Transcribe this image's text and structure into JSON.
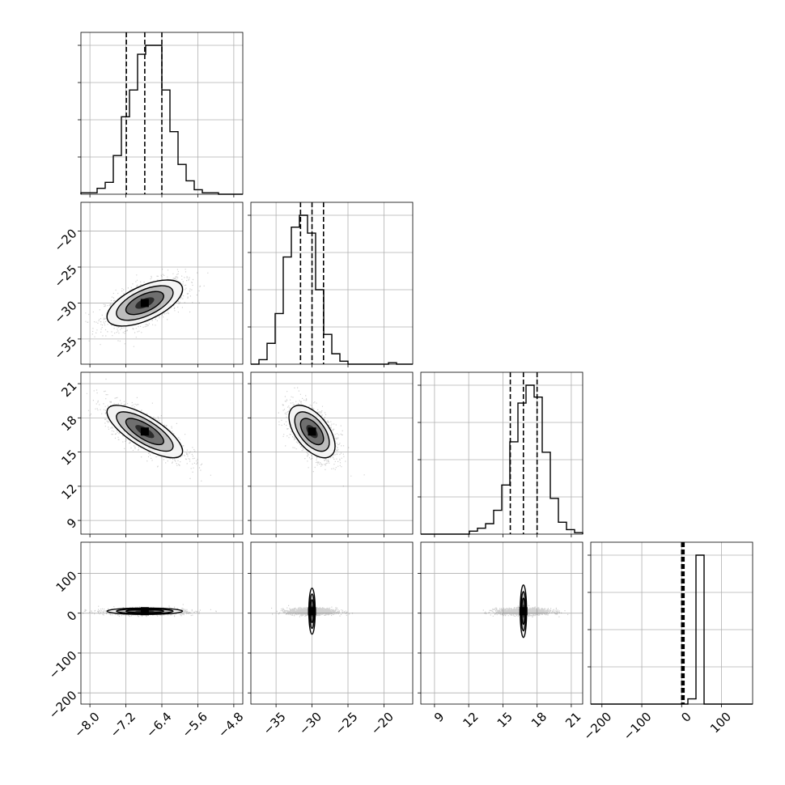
{
  "chart_data": {
    "type": "corner",
    "grid": true,
    "colors": {
      "line": "#000000",
      "grid": "#b0b0b0",
      "points": "#000000"
    },
    "params": [
      {
        "range": [
          -8.2,
          -4.6
        ],
        "ticks": [
          -8.0,
          -7.2,
          -6.4,
          -5.6,
          -4.8
        ],
        "tick_labels": [
          "−8.0",
          "−7.2",
          "−6.4",
          "−5.6",
          "−4.8"
        ],
        "mean": -6.78,
        "sd": 0.42,
        "quantiles": [
          -7.19,
          -6.78,
          -6.4
        ]
      },
      {
        "range": [
          -38.5,
          -16.0
        ],
        "ticks": [
          -35,
          -30,
          -25,
          -20
        ],
        "tick_labels": [
          "−35",
          "−30",
          "−25",
          "−20"
        ],
        "mean": -30.0,
        "sd": 1.6,
        "quantiles": [
          -31.6,
          -30.0,
          -28.4
        ]
      },
      {
        "range": [
          7.8,
          22.0
        ],
        "ticks": [
          9,
          12,
          15,
          18,
          21
        ],
        "tick_labels": [
          "9",
          "12",
          "15",
          "18",
          "21"
        ],
        "mean": 16.8,
        "sd": 1.15,
        "quantiles": [
          15.65,
          16.8,
          18.0
        ]
      },
      {
        "range": [
          -228,
          178
        ],
        "ticks": [
          -200,
          -100,
          0,
          100
        ],
        "tick_labels": [
          "−200",
          "−100",
          "0",
          "100"
        ],
        "mean": 5,
        "sd": 5,
        "quantiles": [
          0,
          3,
          6
        ]
      }
    ],
    "histograms": [
      {
        "param": 0,
        "bins": [
          -8.2,
          -4.6
        ],
        "counts": [
          0.01,
          0.01,
          0.04,
          0.08,
          0.26,
          0.52,
          0.7,
          0.94,
          1.0,
          1.0,
          0.7,
          0.42,
          0.2,
          0.09,
          0.03,
          0.01,
          0.01,
          0.0,
          0.0,
          0.0
        ]
      },
      {
        "param": 1,
        "bins": [
          -38.5,
          -16.0
        ],
        "counts": [
          0.0,
          0.03,
          0.14,
          0.34,
          0.72,
          0.92,
          1.0,
          0.88,
          0.5,
          0.2,
          0.07,
          0.02,
          0.0,
          0.0,
          0.0,
          0.0,
          0.0,
          0.01,
          0.0,
          0.0
        ]
      },
      {
        "param": 2,
        "bins": [
          7.8,
          22.0
        ],
        "counts": [
          0,
          0,
          0,
          0,
          0,
          0,
          0.02,
          0.04,
          0.07,
          0.16,
          0.33,
          0.62,
          0.88,
          1.0,
          0.92,
          0.55,
          0.24,
          0.08,
          0.03,
          0.01
        ]
      },
      {
        "param": 3,
        "bins": [
          -228,
          178
        ],
        "counts": [
          0,
          0,
          0,
          0,
          0,
          0,
          0,
          0,
          0,
          0,
          0,
          0,
          0.035,
          1.0,
          0,
          0,
          0,
          0,
          0,
          0
        ]
      }
    ],
    "pairs": [
      {
        "x": 0,
        "y": 1,
        "correlation": 0.6
      },
      {
        "x": 0,
        "y": 2,
        "correlation": -0.75
      },
      {
        "x": 1,
        "y": 2,
        "correlation": -0.55
      },
      {
        "x": 0,
        "y": 3,
        "correlation": 0.0
      },
      {
        "x": 1,
        "y": 3,
        "correlation": 0.0
      },
      {
        "x": 2,
        "y": 3,
        "correlation": 0.0
      }
    ]
  }
}
